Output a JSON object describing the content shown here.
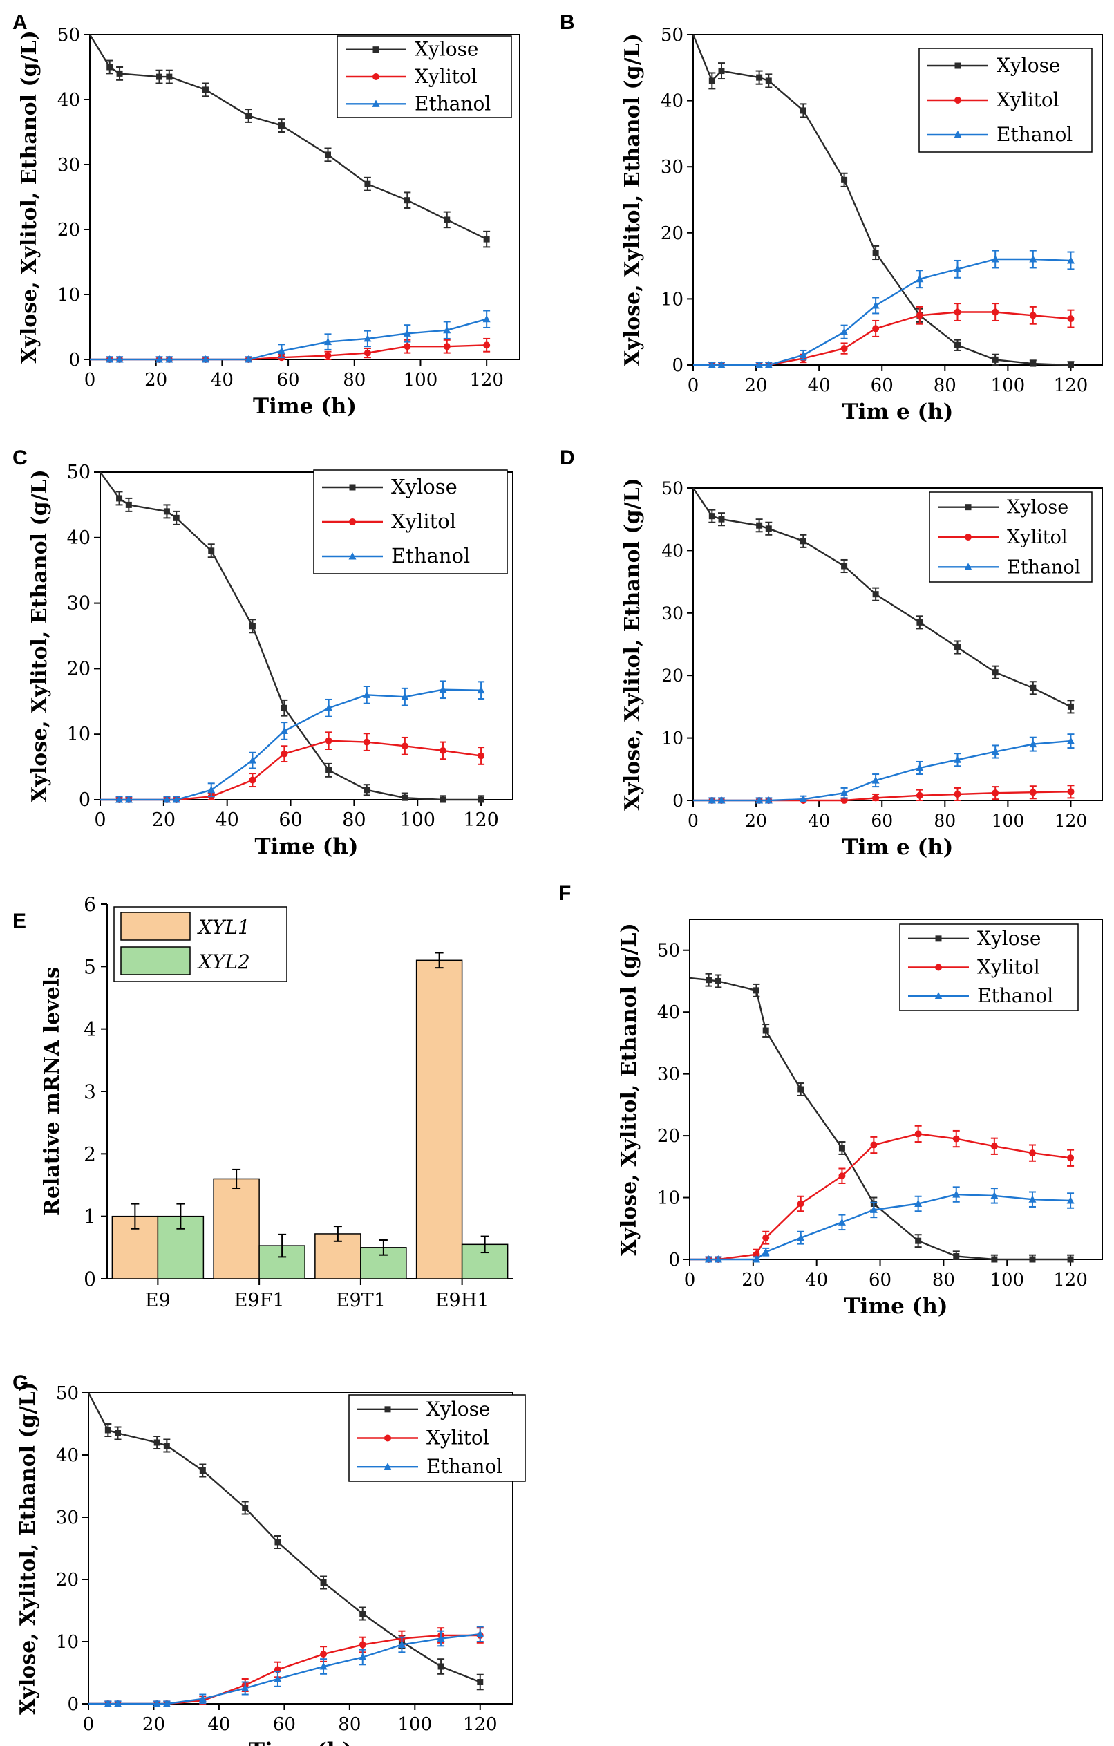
{
  "colors": {
    "xylose": "#2b2b2b",
    "xylitol": "#e8191c",
    "ethanol": "#1f78d2",
    "xyl1": "#f9cc9b",
    "xyl2": "#a8dca1",
    "axis": "#000000"
  },
  "chart_data": [
    {
      "panel": "A",
      "type": "line",
      "xlabel": "Time (h)",
      "ylabel": "Xylose, Xylitol, Ethanol (g/L)",
      "xlim": [
        0,
        130
      ],
      "ylim": [
        0,
        50
      ],
      "xticks": [
        "0",
        "20",
        "40",
        "60",
        "80",
        "100",
        "120"
      ],
      "yticks": [
        "0",
        "10",
        "20",
        "30",
        "40",
        "50"
      ],
      "legend": "top-right",
      "series": [
        {
          "name": "Xylose",
          "marker": "square",
          "x": [
            0,
            6,
            9,
            21,
            24,
            35,
            48,
            58,
            72,
            84,
            96,
            108,
            120
          ],
          "values": [
            50,
            45,
            44,
            43.5,
            43.5,
            41.5,
            37.5,
            36,
            31.5,
            27,
            24.5,
            21.5,
            18.5
          ],
          "err": [
            0,
            1,
            1,
            1,
            1,
            1,
            1,
            1,
            1,
            1,
            1.2,
            1.2,
            1.2
          ]
        },
        {
          "name": "Xylitol",
          "marker": "circle",
          "x": [
            0,
            6,
            9,
            21,
            24,
            35,
            48,
            58,
            72,
            84,
            96,
            108,
            120
          ],
          "values": [
            0,
            0,
            0,
            0,
            0,
            0,
            0,
            0.3,
            0.6,
            1,
            2,
            2,
            2.2
          ],
          "err": [
            0,
            0,
            0,
            0,
            0,
            0,
            0,
            0.5,
            0.6,
            0.7,
            1,
            1,
            1
          ]
        },
        {
          "name": "Ethanol",
          "marker": "triangle",
          "x": [
            0,
            6,
            9,
            21,
            24,
            35,
            48,
            58,
            72,
            84,
            96,
            108,
            120
          ],
          "values": [
            0,
            0,
            0,
            0,
            0,
            0,
            0,
            1.3,
            2.7,
            3.2,
            4,
            4.5,
            6.2
          ],
          "err": [
            0,
            0.4,
            0.4,
            0.4,
            0.4,
            0.4,
            0.4,
            1,
            1.2,
            1.2,
            1.3,
            1.3,
            1.3
          ]
        }
      ]
    },
    {
      "panel": "B",
      "type": "line",
      "xlabel": "Tim e (h)",
      "ylabel": "Xylose, Xylitol, Ethanol (g/L)",
      "xlim": [
        0,
        130
      ],
      "ylim": [
        0,
        50
      ],
      "xticks": [
        "0",
        "20",
        "40",
        "60",
        "80",
        "100",
        "120"
      ],
      "yticks": [
        "0",
        "10",
        "20",
        "30",
        "40",
        "50"
      ],
      "legend": "top-right",
      "series": [
        {
          "name": "Xylose",
          "marker": "square",
          "x": [
            0,
            6,
            9,
            21,
            24,
            35,
            48,
            58,
            72,
            84,
            96,
            108,
            120
          ],
          "values": [
            50,
            43,
            44.5,
            43.5,
            43,
            38.5,
            28,
            17,
            7.5,
            3,
            0.8,
            0.2,
            0
          ],
          "err": [
            0,
            1.2,
            1.2,
            1,
            1,
            1,
            1,
            1,
            1,
            0.8,
            0.8,
            0.5,
            0.5
          ]
        },
        {
          "name": "Xylitol",
          "marker": "circle",
          "x": [
            0,
            6,
            9,
            21,
            24,
            35,
            48,
            58,
            72,
            84,
            96,
            108,
            120
          ],
          "values": [
            0,
            0,
            0,
            0,
            0,
            1,
            2.5,
            5.5,
            7.5,
            8,
            8,
            7.5,
            7
          ],
          "err": [
            0,
            0.4,
            0.4,
            0.4,
            0.4,
            0.6,
            0.8,
            1.2,
            1.3,
            1.3,
            1.3,
            1.3,
            1.3
          ]
        },
        {
          "name": "Ethanol",
          "marker": "triangle",
          "x": [
            0,
            6,
            9,
            21,
            24,
            35,
            48,
            58,
            72,
            84,
            96,
            108,
            120
          ],
          "values": [
            0,
            0,
            0,
            0,
            0,
            1.5,
            5,
            9,
            13,
            14.5,
            16,
            16,
            15.8
          ],
          "err": [
            0,
            0.4,
            0.4,
            0.4,
            0.4,
            0.7,
            1,
            1.2,
            1.3,
            1.3,
            1.3,
            1.3,
            1.3
          ]
        }
      ]
    },
    {
      "panel": "C",
      "type": "line",
      "xlabel": "Time (h)",
      "ylabel": "Xylose, Xylitol, Ethanol (g/L)",
      "xlim": [
        0,
        130
      ],
      "ylim": [
        0,
        50
      ],
      "xticks": [
        "0",
        "20",
        "40",
        "60",
        "80",
        "100",
        "120"
      ],
      "yticks": [
        "0",
        "10",
        "20",
        "30",
        "40",
        "50"
      ],
      "legend": "top-right",
      "series": [
        {
          "name": "Xylose",
          "marker": "square",
          "x": [
            0,
            6,
            9,
            21,
            24,
            35,
            48,
            58,
            72,
            84,
            96,
            108,
            120
          ],
          "values": [
            50,
            46,
            45,
            44,
            43,
            38,
            26.5,
            14,
            4.5,
            1.5,
            0.3,
            0,
            0
          ],
          "err": [
            0,
            1,
            1,
            1,
            1,
            1,
            1,
            1.2,
            1,
            0.8,
            0.7,
            0.6,
            0.6
          ]
        },
        {
          "name": "Xylitol",
          "marker": "circle",
          "x": [
            0,
            6,
            9,
            21,
            24,
            35,
            48,
            58,
            72,
            84,
            96,
            108,
            120
          ],
          "values": [
            0,
            0,
            0,
            0,
            0,
            0.5,
            3,
            7,
            9,
            8.8,
            8.2,
            7.5,
            6.7
          ],
          "err": [
            0,
            0.3,
            0.3,
            0.3,
            0.3,
            0.5,
            1,
            1.2,
            1.3,
            1.3,
            1.3,
            1.3,
            1.3
          ]
        },
        {
          "name": "Ethanol",
          "marker": "triangle",
          "x": [
            0,
            6,
            9,
            21,
            24,
            35,
            48,
            58,
            72,
            84,
            96,
            108,
            120
          ],
          "values": [
            0,
            0,
            0,
            0,
            0,
            1.5,
            6,
            10.5,
            14,
            16,
            15.7,
            16.8,
            16.7
          ],
          "err": [
            0,
            0.5,
            0.5,
            0.5,
            0.5,
            1,
            1.2,
            1.3,
            1.3,
            1.3,
            1.3,
            1.3,
            1.3
          ]
        }
      ]
    },
    {
      "panel": "D",
      "type": "line",
      "xlabel": "Tim e (h)",
      "ylabel": "Xylose, Xylitol, Ethanol (g/L)",
      "xlim": [
        0,
        130
      ],
      "ylim": [
        0,
        50
      ],
      "xticks": [
        "0",
        "20",
        "40",
        "60",
        "80",
        "100",
        "120"
      ],
      "yticks": [
        "0",
        "10",
        "20",
        "30",
        "40",
        "50"
      ],
      "legend": "top-right",
      "series": [
        {
          "name": "Xylose",
          "marker": "square",
          "x": [
            0,
            6,
            9,
            21,
            24,
            35,
            48,
            58,
            72,
            84,
            96,
            108,
            120
          ],
          "values": [
            50,
            45.5,
            45,
            44,
            43.5,
            41.5,
            37.5,
            33,
            28.5,
            24.5,
            20.5,
            18,
            15
          ],
          "err": [
            0,
            1,
            1,
            1,
            1,
            1,
            1,
            1,
            1,
            1,
            1,
            1,
            1
          ]
        },
        {
          "name": "Xylitol",
          "marker": "circle",
          "x": [
            0,
            6,
            9,
            21,
            24,
            35,
            48,
            58,
            72,
            84,
            96,
            108,
            120
          ],
          "values": [
            0,
            0,
            0,
            0,
            0,
            0,
            0,
            0.4,
            0.8,
            1,
            1.2,
            1.3,
            1.4
          ],
          "err": [
            0,
            0,
            0,
            0,
            0,
            0,
            0.3,
            0.6,
            0.9,
            1,
            1,
            1,
            1
          ]
        },
        {
          "name": "Ethanol",
          "marker": "triangle",
          "x": [
            0,
            6,
            9,
            21,
            24,
            35,
            48,
            58,
            72,
            84,
            96,
            108,
            120
          ],
          "values": [
            0,
            0,
            0,
            0,
            0,
            0.2,
            1.2,
            3.2,
            5.2,
            6.5,
            7.8,
            9,
            9.5
          ],
          "err": [
            0,
            0.4,
            0.4,
            0.4,
            0.4,
            0.5,
            0.8,
            1,
            1,
            1,
            1,
            1.1,
            1.1
          ]
        }
      ]
    },
    {
      "panel": "E",
      "type": "bar",
      "xlabel": "",
      "ylabel": "Relative mRNA levels",
      "ylim": [
        0,
        6
      ],
      "yticks": [
        "0",
        "1",
        "2",
        "3",
        "4",
        "5",
        "6"
      ],
      "categories": [
        "E9",
        "E9F1",
        "E9T1",
        "E9H1"
      ],
      "legend": "top-left",
      "series": [
        {
          "name": "XYL1",
          "values": [
            1.0,
            1.6,
            0.72,
            5.1
          ],
          "err": [
            0.2,
            0.15,
            0.12,
            0.12
          ]
        },
        {
          "name": "XYL2",
          "values": [
            1.0,
            0.53,
            0.5,
            0.55
          ],
          "err": [
            0.2,
            0.18,
            0.12,
            0.13
          ]
        }
      ]
    },
    {
      "panel": "F",
      "type": "line",
      "xlabel": "Time (h)",
      "ylabel": "Xylose, Xylitol, Ethanol (g/L)",
      "xlim": [
        0,
        130
      ],
      "ylim": [
        0,
        55
      ],
      "xticks": [
        "0",
        "20",
        "40",
        "60",
        "80",
        "100",
        "120"
      ],
      "yticks": [
        "0",
        "10",
        "20",
        "30",
        "40",
        "50"
      ],
      "legend": "top-right",
      "series": [
        {
          "name": "Xylose",
          "marker": "square",
          "x": [
            0,
            6,
            9,
            21,
            24,
            35,
            48,
            58,
            72,
            84,
            96,
            108,
            120
          ],
          "values": [
            45.5,
            45.2,
            45,
            43.5,
            37,
            27.5,
            18,
            9,
            3,
            0.5,
            0,
            0,
            0
          ],
          "err": [
            0,
            1,
            1,
            1,
            1,
            1,
            1,
            1,
            1,
            0.8,
            0.7,
            0.7,
            0.7
          ]
        },
        {
          "name": "Xylitol",
          "marker": "circle",
          "x": [
            0,
            6,
            9,
            21,
            24,
            35,
            48,
            58,
            72,
            84,
            96,
            108,
            120
          ],
          "values": [
            0,
            0,
            0,
            0.8,
            3.5,
            9,
            13.5,
            18.5,
            20.3,
            19.5,
            18.3,
            17.2,
            16.4
          ],
          "err": [
            0,
            0.4,
            0.4,
            0.8,
            1,
            1.2,
            1.2,
            1.3,
            1.3,
            1.3,
            1.3,
            1.3,
            1.3
          ]
        },
        {
          "name": "Ethanol",
          "marker": "triangle",
          "x": [
            0,
            6,
            9,
            21,
            24,
            35,
            48,
            58,
            72,
            84,
            96,
            108,
            120
          ],
          "values": [
            0,
            0,
            0,
            0,
            1.2,
            3.5,
            6,
            8,
            9,
            10.5,
            10.3,
            9.7,
            9.5
          ],
          "err": [
            0,
            0.4,
            0.4,
            0.4,
            0.6,
            1,
            1.2,
            1.2,
            1.2,
            1.2,
            1.2,
            1.2,
            1.2
          ]
        }
      ]
    },
    {
      "panel": "G",
      "type": "line",
      "xlabel": "Time (h)",
      "ylabel": "Xylose, Xylitol, Ethanol (g/L)",
      "xlim": [
        0,
        130
      ],
      "ylim": [
        0,
        50
      ],
      "xticks": [
        "0",
        "20",
        "40",
        "60",
        "80",
        "100",
        "120"
      ],
      "yticks": [
        "0",
        "10",
        "20",
        "30",
        "40",
        "50"
      ],
      "legend": "top-right",
      "series": [
        {
          "name": "Xylose",
          "marker": "square",
          "x": [
            0,
            6,
            9,
            21,
            24,
            35,
            48,
            58,
            72,
            84,
            96,
            108,
            120
          ],
          "values": [
            50,
            44,
            43.5,
            42,
            41.5,
            37.5,
            31.5,
            26,
            19.5,
            14.5,
            10,
            6,
            3.5
          ],
          "err": [
            0,
            1,
            1,
            1,
            1,
            1,
            1,
            1,
            1,
            1,
            1,
            1.2,
            1.2
          ]
        },
        {
          "name": "Xylitol",
          "marker": "circle",
          "x": [
            0,
            6,
            9,
            21,
            24,
            35,
            48,
            58,
            72,
            84,
            96,
            108,
            120
          ],
          "values": [
            0,
            0,
            0,
            0,
            0,
            0.5,
            3,
            5.5,
            8,
            9.5,
            10.5,
            11,
            11
          ],
          "err": [
            0,
            0.4,
            0.4,
            0.4,
            0.4,
            0.7,
            1,
            1.2,
            1.2,
            1.2,
            1.2,
            1.2,
            1.2
          ]
        },
        {
          "name": "Ethanol",
          "marker": "triangle",
          "x": [
            0,
            6,
            9,
            21,
            24,
            35,
            48,
            58,
            72,
            84,
            96,
            108,
            120
          ],
          "values": [
            0,
            0,
            0,
            0,
            0,
            0.8,
            2.5,
            4,
            6,
            7.5,
            9.5,
            10.5,
            11.2
          ],
          "err": [
            0,
            0.4,
            0.4,
            0.4,
            0.4,
            0.7,
            1,
            1.2,
            1.2,
            1.2,
            1.2,
            1.2,
            1.2
          ]
        }
      ]
    }
  ]
}
